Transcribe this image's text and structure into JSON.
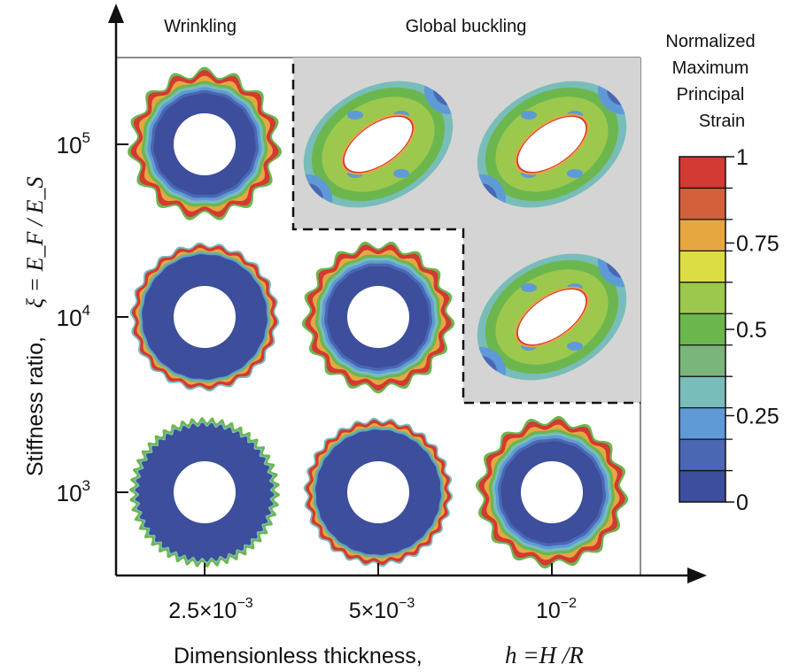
{
  "headers": {
    "left": "Wrinkling",
    "right": "Global buckling"
  },
  "colorbar": {
    "title_lines": [
      "Normalized",
      "Maximum",
      "Principal",
      "Strain"
    ],
    "tick_labels": [
      "1",
      "0.75",
      "0.5",
      "0.25",
      "0"
    ],
    "tick_values": [
      1,
      0.75,
      0.5,
      0.25,
      0
    ],
    "colors": [
      "#d23a33",
      "#d2603a",
      "#e6a741",
      "#dcdc45",
      "#9cc84e",
      "#6cb64e",
      "#7ab57b",
      "#78bdb9",
      "#5e9ad6",
      "#4a67b4",
      "#3c4e9c"
    ]
  },
  "y_axis": {
    "label_text": "Stiffness ratio,",
    "label_math": "ξ = E_F / E_S",
    "ticks": [
      {
        "base": "10",
        "exp": "5"
      },
      {
        "base": "10",
        "exp": "4"
      },
      {
        "base": "10",
        "exp": "3"
      }
    ]
  },
  "x_axis": {
    "label_text": "Dimensionless thickness,",
    "label_math": "h =H /R",
    "ticks": [
      {
        "base": "2.5×10",
        "exp": "−3"
      },
      {
        "base": "5×10",
        "exp": "−3"
      },
      {
        "base": "10",
        "exp": "−2"
      }
    ]
  },
  "grid": [
    {
      "stiffness_exp": 5,
      "cells": [
        "wrinkling",
        "global-buckling",
        "global-buckling"
      ]
    },
    {
      "stiffness_exp": 4,
      "cells": [
        "wrinkling",
        "wrinkling",
        "global-buckling"
      ]
    },
    {
      "stiffness_exp": 3,
      "cells": [
        "wrinkling",
        "wrinkling",
        "wrinkling"
      ]
    }
  ],
  "region_colors": {
    "global_buckling_bg": "#d4d4d4"
  }
}
